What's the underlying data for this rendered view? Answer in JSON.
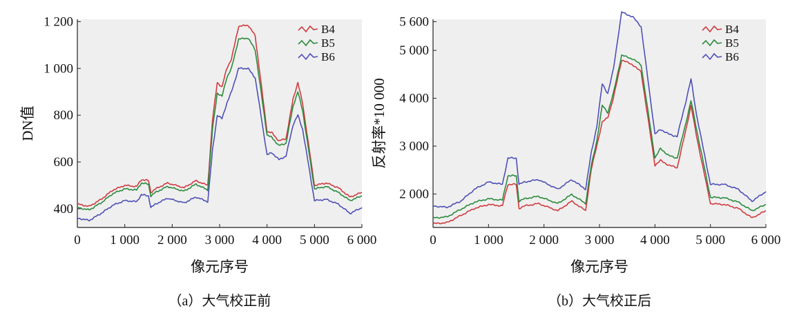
{
  "figure_captions": [
    "（a）大气校正前",
    "（b）大气校正后"
  ],
  "colors": {
    "B4": "#cf3a3f",
    "B5": "#2a8a3c",
    "B6": "#4e4fb6",
    "plot_bg": "#efefef"
  },
  "chart_data": [
    {
      "type": "line",
      "panel": "a",
      "xlabel": "像元序号",
      "ylabel": "DN值",
      "xlim": [
        0,
        6000
      ],
      "ylim": [
        320,
        1210
      ],
      "x_ticks": [
        0,
        1000,
        2000,
        3000,
        4000,
        5000,
        6000
      ],
      "x_tick_labels": [
        "0",
        "1 000",
        "2 000",
        "3 000",
        "4 000",
        "5 000",
        "6 000"
      ],
      "y_ticks": [
        400,
        600,
        800,
        1000,
        1200
      ],
      "y_tick_labels": [
        "400",
        "600",
        "800",
        "1 000",
        "1 200"
      ],
      "legend_position": "top-right",
      "x": [
        0,
        250,
        500,
        750,
        1000,
        1250,
        1350,
        1500,
        1550,
        1650,
        1900,
        2250,
        2500,
        2750,
        2850,
        2950,
        3050,
        3150,
        3250,
        3400,
        3600,
        3750,
        4000,
        4100,
        4250,
        4400,
        4550,
        4650,
        4750,
        5000,
        5250,
        5500,
        5750,
        6000
      ],
      "series": [
        {
          "name": "B4",
          "values": [
            420,
            410,
            440,
            480,
            500,
            495,
            525,
            520,
            470,
            485,
            510,
            490,
            520,
            500,
            780,
            940,
            920,
            1000,
            1040,
            1180,
            1185,
            1140,
            730,
            725,
            690,
            700,
            870,
            940,
            850,
            500,
            510,
            490,
            450,
            470
          ]
        },
        {
          "name": "B5",
          "values": [
            405,
            395,
            425,
            465,
            485,
            480,
            510,
            505,
            455,
            470,
            495,
            475,
            505,
            480,
            740,
            895,
            880,
            960,
            1000,
            1125,
            1130,
            1080,
            715,
            705,
            670,
            680,
            840,
            900,
            820,
            485,
            495,
            470,
            435,
            455
          ]
        },
        {
          "name": "B6",
          "values": [
            360,
            350,
            380,
            415,
            435,
            430,
            460,
            455,
            405,
            420,
            445,
            425,
            450,
            430,
            650,
            800,
            785,
            850,
            900,
            1000,
            1000,
            960,
            630,
            640,
            610,
            625,
            760,
            800,
            740,
            435,
            440,
            420,
            380,
            405
          ]
        }
      ]
    },
    {
      "type": "line",
      "panel": "b",
      "xlabel": "像元序号",
      "ylabel": "反射率*10 000",
      "xlim": [
        0,
        6000
      ],
      "ylim": [
        1300,
        5650
      ],
      "x_ticks": [
        0,
        1000,
        2000,
        3000,
        4000,
        5000,
        6000
      ],
      "x_tick_labels": [
        "0",
        "1 000",
        "2 000",
        "3 000",
        "4 000",
        "5 000",
        "6 000"
      ],
      "y_ticks": [
        2000,
        3000,
        4000,
        5000,
        5600
      ],
      "y_tick_labels": [
        "2 000",
        "3 000",
        "4 000",
        "5 000",
        "5 600"
      ],
      "legend_position": "top-right",
      "x": [
        0,
        250,
        500,
        750,
        1000,
        1250,
        1350,
        1500,
        1550,
        1650,
        1900,
        2250,
        2500,
        2750,
        2850,
        2950,
        3050,
        3150,
        3250,
        3400,
        3600,
        3750,
        4000,
        4100,
        4250,
        4400,
        4550,
        4650,
        4750,
        5000,
        5250,
        5500,
        5750,
        6000
      ],
      "series": [
        {
          "name": "B4",
          "values": [
            1380,
            1400,
            1550,
            1700,
            1780,
            1750,
            2200,
            2200,
            1700,
            1750,
            1800,
            1650,
            1850,
            1650,
            2500,
            3000,
            3500,
            3600,
            4000,
            4800,
            4700,
            4550,
            2600,
            2700,
            2600,
            2550,
            3300,
            3850,
            3200,
            1800,
            1780,
            1700,
            1500,
            1650
          ]
        },
        {
          "name": "B5",
          "values": [
            1500,
            1520,
            1680,
            1830,
            1900,
            1870,
            2380,
            2380,
            1850,
            1900,
            1950,
            1800,
            1990,
            1800,
            2580,
            3100,
            3850,
            3700,
            4100,
            4900,
            4820,
            4700,
            2750,
            2950,
            2800,
            2750,
            3450,
            3950,
            3350,
            1930,
            1920,
            1830,
            1650,
            1780
          ]
        },
        {
          "name": "B6",
          "values": [
            1750,
            1720,
            1850,
            2100,
            2250,
            2200,
            2750,
            2750,
            2200,
            2250,
            2300,
            2100,
            2300,
            2100,
            2850,
            3400,
            4300,
            4100,
            4600,
            5800,
            5700,
            5500,
            3250,
            3350,
            3250,
            3200,
            3900,
            4400,
            3650,
            2200,
            2200,
            2100,
            1850,
            2050
          ]
        }
      ]
    }
  ]
}
